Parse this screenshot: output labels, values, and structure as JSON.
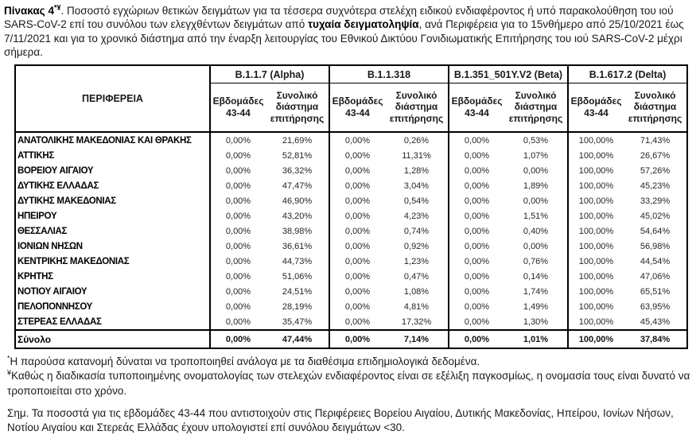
{
  "title": {
    "label": "Πίνακας 4",
    "label_sup": "*¥",
    "segment_1": ". Ποσοστό εγχώριων θετικών δειγμάτων για τα τέσσερα συχνότερα στελέχη ειδικού ενδιαφέροντος ή υπό παρακολούθηση του ιού SARS-CoV-2 επί του συνόλου των ελεγχθέντων δειγμάτων από ",
    "bold_phrase": "τυχαία δειγματοληψία",
    "segment_2": ", ανά Περιφέρεια για το 15νθήμερο από 25/10/2021 έως 7/11/2021 και για το χρονικό διάστημα από την έναρξη λειτουργίας του Εθνικού Δικτύου Γονιδιωματικής Επιτήρησης του ιού SARS-CoV-2 μέχρι σήμερα."
  },
  "table": {
    "region_header": "ΠΕΡΙΦΕΡΕΙΑ",
    "groups": [
      "B.1.1.7 (Alpha)",
      "B.1.1.318",
      "B.1.351_501Y.V2 (Beta)",
      "B.1.617.2 (Delta)"
    ],
    "subheaders": [
      "Εβδομάδες 43-44",
      "Συνολικό διάστημα επιτήρησης"
    ],
    "rows": [
      {
        "region": "ΑΝΑΤΟΛΙΚΗΣ ΜΑΚΕΔΟΝΙΑΣ ΚΑΙ ΘΡΑΚΗΣ",
        "values": [
          "0,00%",
          "21,69%",
          "0,00%",
          "0,26%",
          "0,00%",
          "0,53%",
          "100,00%",
          "71,43%"
        ]
      },
      {
        "region": "ΑΤΤΙΚΗΣ",
        "values": [
          "0,00%",
          "52,81%",
          "0,00%",
          "11,31%",
          "0,00%",
          "1,07%",
          "100,00%",
          "26,67%"
        ]
      },
      {
        "region": "ΒΟΡΕΙΟΥ ΑΙΓΑΙΟΥ",
        "values": [
          "0,00%",
          "36,32%",
          "0,00%",
          "1,28%",
          "0,00%",
          "0,00%",
          "100,00%",
          "57,26%"
        ]
      },
      {
        "region": "ΔΥΤΙΚΗΣ ΕΛΛΑΔΑΣ",
        "values": [
          "0,00%",
          "47,47%",
          "0,00%",
          "3,04%",
          "0,00%",
          "1,89%",
          "100,00%",
          "45,23%"
        ]
      },
      {
        "region": "ΔΥΤΙΚΗΣ ΜΑΚΕΔΟΝΙΑΣ",
        "values": [
          "0,00%",
          "46,90%",
          "0,00%",
          "0,54%",
          "0,00%",
          "0,00%",
          "100,00%",
          "33,29%"
        ]
      },
      {
        "region": "ΗΠΕΙΡΟΥ",
        "values": [
          "0,00%",
          "43,20%",
          "0,00%",
          "4,23%",
          "0,00%",
          "1,51%",
          "100,00%",
          "45,02%"
        ]
      },
      {
        "region": "ΘΕΣΣΑΛΙΑΣ",
        "values": [
          "0,00%",
          "38,98%",
          "0,00%",
          "0,74%",
          "0,00%",
          "0,40%",
          "100,00%",
          "54,64%"
        ]
      },
      {
        "region": "ΙΟΝΙΩΝ ΝΗΣΩΝ",
        "values": [
          "0,00%",
          "36,61%",
          "0,00%",
          "0,92%",
          "0,00%",
          "0,00%",
          "100,00%",
          "56,98%"
        ]
      },
      {
        "region": "ΚΕΝΤΡΙΚΗΣ ΜΑΚΕΔΟΝΙΑΣ",
        "values": [
          "0,00%",
          "44,73%",
          "0,00%",
          "1,23%",
          "0,00%",
          "0,76%",
          "100,00%",
          "44,54%"
        ]
      },
      {
        "region": "ΚΡΗΤΗΣ",
        "values": [
          "0,00%",
          "51,06%",
          "0,00%",
          "0,47%",
          "0,00%",
          "0,14%",
          "100,00%",
          "47,06%"
        ]
      },
      {
        "region": "ΝΟΤΙΟΥ ΑΙΓΑΙΟΥ",
        "values": [
          "0,00%",
          "24,51%",
          "0,00%",
          "1,08%",
          "0,00%",
          "1,74%",
          "100,00%",
          "65,51%"
        ]
      },
      {
        "region": "ΠΕΛΟΠΟΝΝΗΣΟΥ",
        "values": [
          "0,00%",
          "28,19%",
          "0,00%",
          "4,81%",
          "0,00%",
          "1,49%",
          "100,00%",
          "63,95%"
        ]
      },
      {
        "region": "ΣΤΕΡΕΑΣ ΕΛΛΑΔΑΣ",
        "values": [
          "0,00%",
          "35,47%",
          "0,00%",
          "17,32%",
          "0,00%",
          "1,30%",
          "100,00%",
          "45,43%"
        ]
      }
    ],
    "total": {
      "region": "Σύνολο",
      "values": [
        "0,00%",
        "47,44%",
        "0,00%",
        "7,14%",
        "0,00%",
        "1,01%",
        "100,00%",
        "37,84%"
      ]
    }
  },
  "footnotes": [
    {
      "marker": "*",
      "text": "Η παρούσα κατανομή δύναται να τροποποιηθεί ανάλογα με τα διαθέσιμα επιδημιολογικά δεδομένα."
    },
    {
      "marker": "¥",
      "text": "Καθώς η διαδικασία τυποποιημένης ονοματολογίας των στελεχών ενδιαφέροντος είναι σε εξέλιξη παγκοσμίως, η ονομασία τους είναι δυνατό να τροποποιείται στο χρόνο."
    },
    {
      "marker": "",
      "text": "Σημ. Τα ποσοστά για τις εβδομάδες 43-44 που αντιστοιχούν στις Περιφέρειες Βορείου Αιγαίου, Δυτικής Μακεδονίας, Ηπείρου, Ιονίων Νήσων, Νοτίου Αιγαίου και Στερεάς Ελλάδας έχουν υπολογιστεί επί συνόλου δειγμάτων <30."
    }
  ]
}
